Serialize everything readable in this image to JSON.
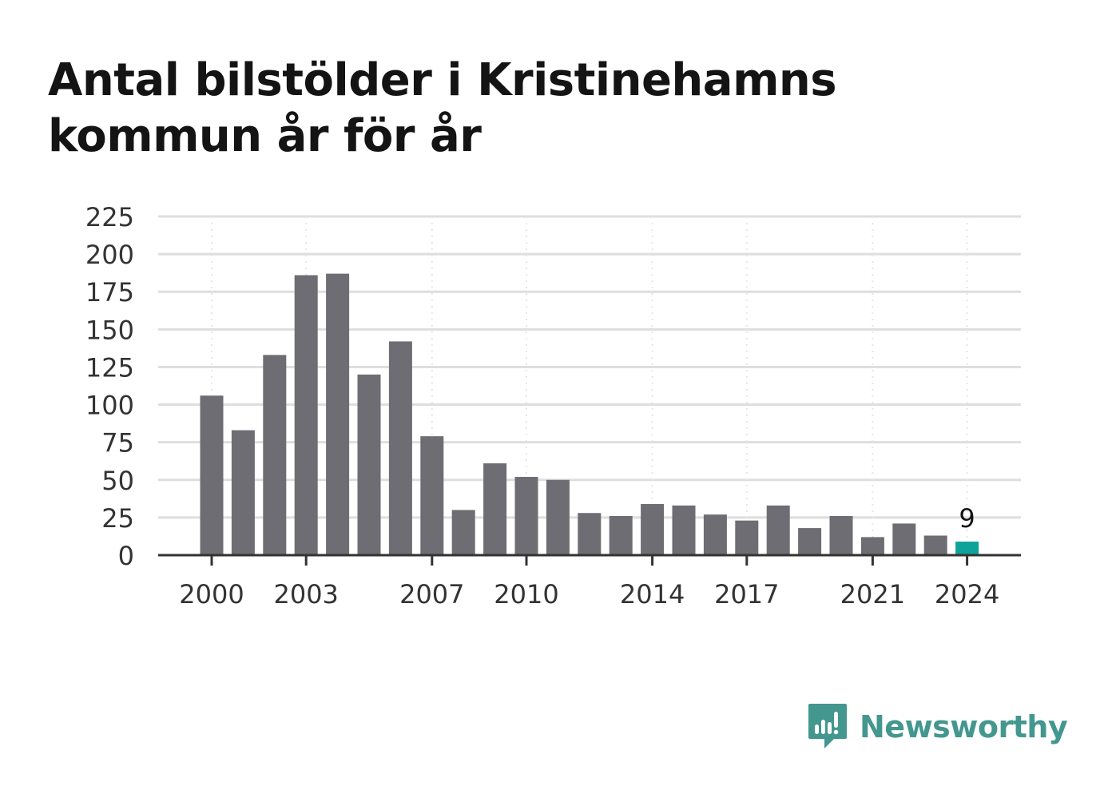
{
  "chart_data": {
    "type": "bar",
    "title": "Antal bilstölder i Kristinehamns kommun år för år",
    "categories": [
      "2000",
      "2001",
      "2002",
      "2003",
      "2004",
      "2005",
      "2006",
      "2007",
      "2008",
      "2009",
      "2010",
      "2011",
      "2012",
      "2013",
      "2014",
      "2015",
      "2016",
      "2017",
      "2018",
      "2019",
      "2020",
      "2021",
      "2022",
      "2023",
      "2024"
    ],
    "values": [
      106,
      83,
      133,
      186,
      187,
      120,
      142,
      79,
      30,
      61,
      52,
      50,
      28,
      26,
      34,
      33,
      27,
      23,
      33,
      18,
      26,
      12,
      21,
      13,
      9
    ],
    "x_tick_labels": [
      "2000",
      "2003",
      "2007",
      "2010",
      "2014",
      "2017",
      "2021",
      "2024"
    ],
    "y_ticks": [
      0,
      25,
      50,
      75,
      100,
      125,
      150,
      175,
      200,
      225
    ],
    "ylim": [
      0,
      225
    ],
    "xlabel": "",
    "ylabel": "",
    "grid": true,
    "highlight": {
      "category": "2024",
      "label": "9"
    },
    "colors": {
      "bar": "#6e6d73",
      "highlight": "#0ea39a",
      "grid": "#dedede",
      "axis": "#333333",
      "tick_text": "#333333"
    }
  },
  "brand": {
    "name": "Newsworthy",
    "icon": "newsworthy-logo-icon",
    "color": "#43978f"
  }
}
